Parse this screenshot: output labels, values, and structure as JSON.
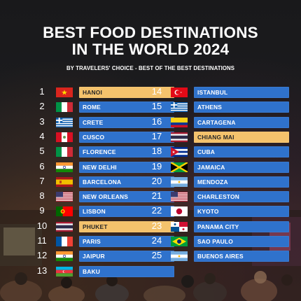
{
  "header": {
    "title_line1": "BEST FOOD DESTINATIONS",
    "title_line2": "IN THE WORLD 2024",
    "subtitle": "BY TRAVELERS' CHOICE - BEST OF THE BEST DESTINATIONS"
  },
  "colors": {
    "bar": "#2f72cc",
    "highlight_bar": "#f4c26c",
    "background": "#1b1b1d"
  },
  "rankings": [
    {
      "rank": "1",
      "city": "HANOI",
      "flag": "vietnam-flag-icon",
      "highlight": true
    },
    {
      "rank": "2",
      "city": "ROME",
      "flag": "italy-flag-icon",
      "highlight": false
    },
    {
      "rank": "3",
      "city": "CRETE",
      "flag": "greece-flag-icon",
      "highlight": false
    },
    {
      "rank": "4",
      "city": "CUSCO",
      "flag": "peru-flag-icon",
      "highlight": false
    },
    {
      "rank": "5",
      "city": "FLORENCE",
      "flag": "italy-flag-icon",
      "highlight": false
    },
    {
      "rank": "6",
      "city": "NEW DELHI",
      "flag": "india-flag-icon",
      "highlight": false
    },
    {
      "rank": "7",
      "city": "BARCELONA",
      "flag": "spain-flag-icon",
      "highlight": false
    },
    {
      "rank": "8",
      "city": "NEW ORLEANS",
      "flag": "usa-flag-icon",
      "highlight": false
    },
    {
      "rank": "9",
      "city": "LISBON",
      "flag": "portugal-flag-icon",
      "highlight": false
    },
    {
      "rank": "10",
      "city": "PHUKET",
      "flag": "thailand-flag-icon",
      "highlight": true
    },
    {
      "rank": "11",
      "city": "PARIS",
      "flag": "france-flag-icon",
      "highlight": false
    },
    {
      "rank": "12",
      "city": "JAIPUR",
      "flag": "india-flag-icon",
      "highlight": false
    },
    {
      "rank": "13",
      "city": "BAKU",
      "flag": "azerbaijan-flag-icon",
      "highlight": false
    },
    {
      "rank": "14",
      "city": "ISTANBUL",
      "flag": "turkey-flag-icon",
      "highlight": false
    },
    {
      "rank": "15",
      "city": "ATHENS",
      "flag": "greece-flag-icon",
      "highlight": false
    },
    {
      "rank": "16",
      "city": "CARTAGENA",
      "flag": "colombia-flag-icon",
      "highlight": false
    },
    {
      "rank": "17",
      "city": "CHIANG MAI",
      "flag": "thailand-flag-icon",
      "highlight": true
    },
    {
      "rank": "18",
      "city": "CUBA",
      "flag": "cuba-flag-icon",
      "highlight": false
    },
    {
      "rank": "19",
      "city": "JAMAICA",
      "flag": "jamaica-flag-icon",
      "highlight": false
    },
    {
      "rank": "20",
      "city": "MENDOZA",
      "flag": "argentina-flag-icon",
      "highlight": false
    },
    {
      "rank": "21",
      "city": "CHARLESTON",
      "flag": "usa-flag-icon",
      "highlight": false
    },
    {
      "rank": "22",
      "city": "KYOTO",
      "flag": "japan-flag-icon",
      "highlight": false
    },
    {
      "rank": "23",
      "city": "PANAMA CITY",
      "flag": "panama-flag-icon",
      "highlight": false
    },
    {
      "rank": "24",
      "city": "SAO PAULO",
      "flag": "brazil-flag-icon",
      "highlight": false
    },
    {
      "rank": "25",
      "city": "BUENOS AIRES",
      "flag": "argentina-flag-icon",
      "highlight": false
    }
  ]
}
